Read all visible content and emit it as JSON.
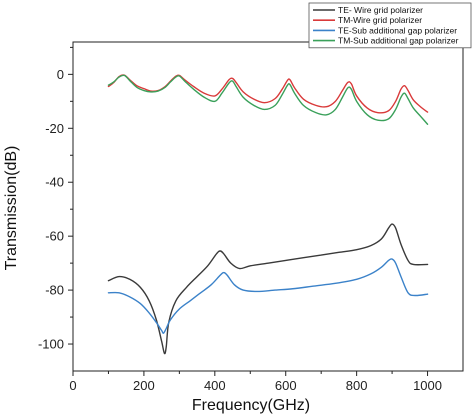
{
  "chart_data": {
    "type": "line",
    "title": "",
    "xlabel": "Frequency(GHz)",
    "ylabel": "Transmission(dB)",
    "xlim": [
      0,
      1100
    ],
    "ylim": [
      -110,
      12
    ],
    "xticks": [
      0,
      200,
      400,
      600,
      800,
      1000
    ],
    "yticks": [
      0,
      -20,
      -40,
      -60,
      -80,
      -100
    ],
    "grid": false,
    "legend_position": "top-right",
    "series": [
      {
        "name": "TE- Wire grid polarizer",
        "color": "#3a3a3a",
        "points": [
          [
            100,
            -76.5
          ],
          [
            130,
            -75
          ],
          [
            160,
            -76
          ],
          [
            190,
            -79
          ],
          [
            215,
            -84
          ],
          [
            235,
            -91
          ],
          [
            250,
            -99
          ],
          [
            258,
            -103.5
          ],
          [
            263,
            -101
          ],
          [
            270,
            -92
          ],
          [
            290,
            -84
          ],
          [
            320,
            -79
          ],
          [
            350,
            -75
          ],
          [
            380,
            -71
          ],
          [
            405,
            -66.5
          ],
          [
            415,
            -65.5
          ],
          [
            425,
            -66.5
          ],
          [
            445,
            -70
          ],
          [
            470,
            -72
          ],
          [
            500,
            -71
          ],
          [
            550,
            -70
          ],
          [
            600,
            -69
          ],
          [
            650,
            -68
          ],
          [
            700,
            -67
          ],
          [
            750,
            -66
          ],
          [
            800,
            -65
          ],
          [
            840,
            -63.5
          ],
          [
            870,
            -61
          ],
          [
            890,
            -57
          ],
          [
            900,
            -55.5
          ],
          [
            910,
            -57
          ],
          [
            925,
            -63
          ],
          [
            945,
            -69
          ],
          [
            960,
            -70.5
          ],
          [
            1000,
            -70.5
          ]
        ]
      },
      {
        "name": "TM-Wire grid polarizer",
        "color": "#d93a3a",
        "points": [
          [
            100,
            -4.5
          ],
          [
            115,
            -3
          ],
          [
            130,
            -0.8
          ],
          [
            145,
            -0.3
          ],
          [
            160,
            -2
          ],
          [
            180,
            -4.2
          ],
          [
            200,
            -5.3
          ],
          [
            220,
            -6.2
          ],
          [
            240,
            -6
          ],
          [
            260,
            -4.5
          ],
          [
            275,
            -2.5
          ],
          [
            290,
            -0.7
          ],
          [
            300,
            -0.4
          ],
          [
            315,
            -2
          ],
          [
            340,
            -4.5
          ],
          [
            370,
            -7
          ],
          [
            400,
            -8
          ],
          [
            420,
            -5.5
          ],
          [
            440,
            -2
          ],
          [
            450,
            -1.5
          ],
          [
            460,
            -3
          ],
          [
            480,
            -6.5
          ],
          [
            510,
            -9.2
          ],
          [
            540,
            -10.5
          ],
          [
            570,
            -9
          ],
          [
            590,
            -5.5
          ],
          [
            605,
            -2.2
          ],
          [
            612,
            -2
          ],
          [
            625,
            -5
          ],
          [
            650,
            -9.2
          ],
          [
            685,
            -11.5
          ],
          [
            715,
            -12
          ],
          [
            740,
            -10
          ],
          [
            760,
            -6
          ],
          [
            775,
            -3
          ],
          [
            785,
            -3.5
          ],
          [
            800,
            -8
          ],
          [
            830,
            -12.5
          ],
          [
            860,
            -14.2
          ],
          [
            890,
            -13.5
          ],
          [
            910,
            -10
          ],
          [
            925,
            -5.5
          ],
          [
            935,
            -4.2
          ],
          [
            945,
            -6
          ],
          [
            960,
            -9.5
          ],
          [
            980,
            -12
          ],
          [
            1000,
            -14
          ]
        ]
      },
      {
        "name": "TE-Sub additional gap polarizer",
        "color": "#3b82c9",
        "points": [
          [
            100,
            -81
          ],
          [
            130,
            -81
          ],
          [
            160,
            -82.5
          ],
          [
            190,
            -85
          ],
          [
            215,
            -88.5
          ],
          [
            235,
            -92
          ],
          [
            250,
            -95
          ],
          [
            255,
            -96
          ],
          [
            262,
            -94.5
          ],
          [
            275,
            -91
          ],
          [
            300,
            -87
          ],
          [
            330,
            -84
          ],
          [
            360,
            -81
          ],
          [
            390,
            -78
          ],
          [
            415,
            -74.5
          ],
          [
            425,
            -73.5
          ],
          [
            435,
            -74.5
          ],
          [
            455,
            -78
          ],
          [
            480,
            -80
          ],
          [
            520,
            -80.5
          ],
          [
            570,
            -80
          ],
          [
            620,
            -79.5
          ],
          [
            680,
            -78.5
          ],
          [
            740,
            -77.5
          ],
          [
            800,
            -76
          ],
          [
            840,
            -74
          ],
          [
            870,
            -71.5
          ],
          [
            890,
            -69
          ],
          [
            900,
            -68.5
          ],
          [
            910,
            -70
          ],
          [
            925,
            -75
          ],
          [
            945,
            -81
          ],
          [
            965,
            -82
          ],
          [
            1000,
            -81.5
          ]
        ]
      },
      {
        "name": "TM-Sub additional gap polarizer",
        "color": "#3aa05a",
        "points": [
          [
            100,
            -4
          ],
          [
            115,
            -2.8
          ],
          [
            130,
            -1
          ],
          [
            145,
            -0.4
          ],
          [
            160,
            -2.3
          ],
          [
            180,
            -4.8
          ],
          [
            200,
            -6
          ],
          [
            220,
            -6.5
          ],
          [
            240,
            -6.2
          ],
          [
            260,
            -4.8
          ],
          [
            275,
            -2.8
          ],
          [
            290,
            -1
          ],
          [
            300,
            -0.6
          ],
          [
            315,
            -2.5
          ],
          [
            340,
            -5.5
          ],
          [
            370,
            -8.5
          ],
          [
            400,
            -10
          ],
          [
            420,
            -7
          ],
          [
            440,
            -3.2
          ],
          [
            450,
            -2.5
          ],
          [
            460,
            -4.5
          ],
          [
            480,
            -8.5
          ],
          [
            510,
            -11.5
          ],
          [
            540,
            -13
          ],
          [
            570,
            -11.5
          ],
          [
            590,
            -7.5
          ],
          [
            605,
            -4
          ],
          [
            612,
            -3.8
          ],
          [
            625,
            -7
          ],
          [
            650,
            -11.5
          ],
          [
            685,
            -14.2
          ],
          [
            715,
            -15
          ],
          [
            740,
            -13
          ],
          [
            760,
            -8.5
          ],
          [
            775,
            -5
          ],
          [
            785,
            -5.5
          ],
          [
            800,
            -10
          ],
          [
            830,
            -15
          ],
          [
            860,
            -17
          ],
          [
            890,
            -16.5
          ],
          [
            910,
            -13
          ],
          [
            925,
            -8.5
          ],
          [
            935,
            -7
          ],
          [
            945,
            -9
          ],
          [
            960,
            -12.5
          ],
          [
            980,
            -15.5
          ],
          [
            1000,
            -18.5
          ]
        ]
      }
    ]
  }
}
